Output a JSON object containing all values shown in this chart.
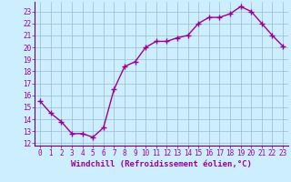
{
  "x": [
    0,
    1,
    2,
    3,
    4,
    5,
    6,
    7,
    8,
    9,
    10,
    11,
    12,
    13,
    14,
    15,
    16,
    17,
    18,
    19,
    20,
    21,
    22,
    23
  ],
  "y": [
    15.5,
    14.5,
    13.8,
    12.8,
    12.8,
    12.5,
    13.3,
    16.5,
    18.4,
    18.8,
    20.0,
    20.5,
    20.5,
    20.8,
    21.0,
    22.0,
    22.5,
    22.5,
    22.8,
    23.4,
    23.0,
    22.0,
    21.0,
    20.1
  ],
  "line_color": "#990099",
  "marker": "+",
  "marker_size": 4,
  "linewidth": 1.0,
  "xlabel": "Windchill (Refroidissement éolien,°C)",
  "xlabel_fontsize": 6.5,
  "bg_color": "#cceeff",
  "grid_color": "#99bbcc",
  "yticks": [
    12,
    13,
    14,
    15,
    16,
    17,
    18,
    19,
    20,
    21,
    22,
    23
  ],
  "xticks": [
    0,
    1,
    2,
    3,
    4,
    5,
    6,
    7,
    8,
    9,
    10,
    11,
    12,
    13,
    14,
    15,
    16,
    17,
    18,
    19,
    20,
    21,
    22,
    23
  ],
  "ylim": [
    11.8,
    23.8
  ],
  "xlim": [
    -0.5,
    23.5
  ],
  "ytick_fontsize": 5.5,
  "xtick_fontsize": 5.5,
  "spine_color": "#660066",
  "label_color": "#990099"
}
